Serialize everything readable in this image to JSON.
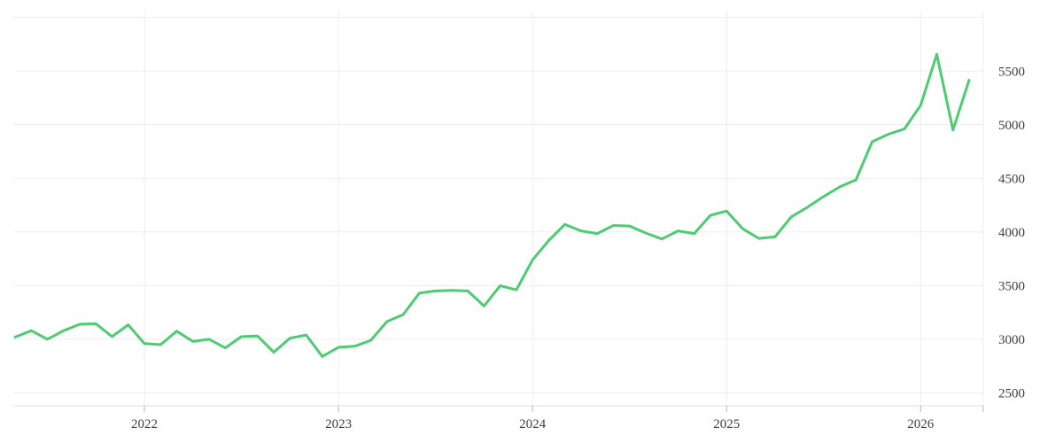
{
  "chart_data": {
    "type": "line",
    "title": "",
    "xlabel": "",
    "ylabel": "",
    "frequency": "monthly",
    "x": [
      "2021-05",
      "2021-06",
      "2021-07",
      "2021-08",
      "2021-09",
      "2021-10",
      "2021-11",
      "2021-12",
      "2022-01",
      "2022-02",
      "2022-03",
      "2022-04",
      "2022-05",
      "2022-06",
      "2022-07",
      "2022-08",
      "2022-09",
      "2022-10",
      "2022-11",
      "2022-12",
      "2023-01",
      "2023-02",
      "2023-03",
      "2023-04",
      "2023-05",
      "2023-06",
      "2023-07",
      "2023-08",
      "2023-09",
      "2023-10",
      "2023-11",
      "2023-12",
      "2024-01",
      "2024-02",
      "2024-03",
      "2024-04",
      "2024-05",
      "2024-06",
      "2024-07",
      "2024-08",
      "2024-09",
      "2024-10",
      "2024-11",
      "2024-12",
      "2025-01",
      "2025-02",
      "2025-03",
      "2025-04",
      "2025-05",
      "2025-06",
      "2025-07",
      "2025-08",
      "2025-09",
      "2025-10",
      "2025-11",
      "2025-12",
      "2026-01",
      "2026-02",
      "2026-03",
      "2026-04"
    ],
    "values": [
      3020,
      3080,
      3000,
      3080,
      3140,
      3145,
      3025,
      3135,
      2960,
      2950,
      3075,
      2980,
      3000,
      2920,
      3025,
      3030,
      2880,
      3010,
      3040,
      2840,
      2925,
      2935,
      2990,
      3165,
      3230,
      3430,
      3450,
      3455,
      3450,
      3310,
      3500,
      3460,
      3740,
      3920,
      4070,
      4010,
      3985,
      4060,
      4055,
      3990,
      3935,
      4010,
      3985,
      4155,
      4195,
      4030,
      3940,
      3955,
      4140,
      4230,
      4330,
      4420,
      4485,
      4840,
      4910,
      4960,
      5180,
      5655,
      4950,
      5415
    ],
    "x_axis": {
      "tick_labels": [
        "2022",
        "2023",
        "2024",
        "2025",
        "2026"
      ]
    },
    "y_axis": {
      "tick_labels": [
        "2500",
        "3000",
        "3500",
        "4000",
        "4500",
        "5000",
        "5500"
      ],
      "ticks": [
        2500,
        3000,
        3500,
        4000,
        4500,
        5000,
        5500
      ],
      "range": [
        2500,
        6000
      ],
      "step": 500,
      "side": "right"
    },
    "grid": "on",
    "legend": "none",
    "colors": {
      "line": "#4ECB73",
      "grid": "#EDEDED",
      "axis_line": "#DCDCDC",
      "tick_mark": "#B5B5B5",
      "label_text": "#3F3F3F",
      "background": "#FFFFFF"
    }
  }
}
